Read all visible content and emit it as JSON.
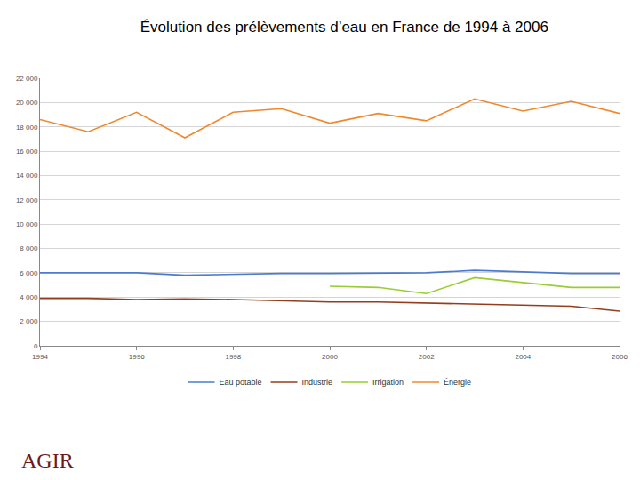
{
  "chart_data": {
    "type": "line",
    "title": "Évolution des prélèvements d’eau en France de 1994 à 2006",
    "x": [
      1994,
      1995,
      1996,
      1997,
      1998,
      1999,
      2000,
      2001,
      2002,
      2003,
      2004,
      2005,
      2006
    ],
    "series": [
      {
        "name": "Eau potable",
        "color": "#4a7bd0",
        "values": [
          6000,
          6000,
          6000,
          5800,
          5900,
          5950,
          5950,
          6000,
          6000,
          6200,
          6050,
          5950,
          5950
        ]
      },
      {
        "name": "Industrie",
        "color": "#953e1f",
        "values": [
          3900,
          3900,
          3800,
          3850,
          3800,
          3700,
          3600,
          3600,
          3500,
          3400,
          3300,
          3250,
          2850
        ]
      },
      {
        "name": "Irrigation",
        "color": "#9acd32",
        "values": [
          null,
          null,
          null,
          null,
          null,
          null,
          4900,
          4800,
          4300,
          5600,
          5200,
          4800,
          4800
        ]
      },
      {
        "name": "Énergie",
        "color": "#f0882e",
        "values": [
          18600,
          17600,
          19200,
          17100,
          19200,
          19500,
          18300,
          19100,
          18500,
          20300,
          19300,
          20100,
          19100
        ]
      }
    ],
    "xlim": [
      1994,
      2006
    ],
    "xticks": [
      1994,
      1996,
      1998,
      2000,
      2002,
      2004,
      2006
    ],
    "ylim": [
      0,
      22000
    ],
    "yticks": [
      0,
      {
        "value": 2000,
        "label": "2 000"
      },
      {
        "value": 4000,
        "label": "4 000"
      },
      {
        "value": 6000,
        "label": "6 000"
      },
      {
        "value": 8000,
        "label": "8 000"
      },
      {
        "value": 10000,
        "label": "10 000"
      },
      {
        "value": 12000,
        "label": "12 000"
      },
      {
        "value": 14000,
        "label": "14 000"
      },
      {
        "value": 16000,
        "label": "16 000"
      },
      {
        "value": 18000,
        "label": "18 000"
      },
      {
        "value": 20000,
        "label": "20 000"
      },
      {
        "value": 22000,
        "label": "22 000"
      }
    ],
    "grid": true,
    "legend": "bottom",
    "annotations": [
      {
        "text": "AGIR"
      }
    ]
  }
}
